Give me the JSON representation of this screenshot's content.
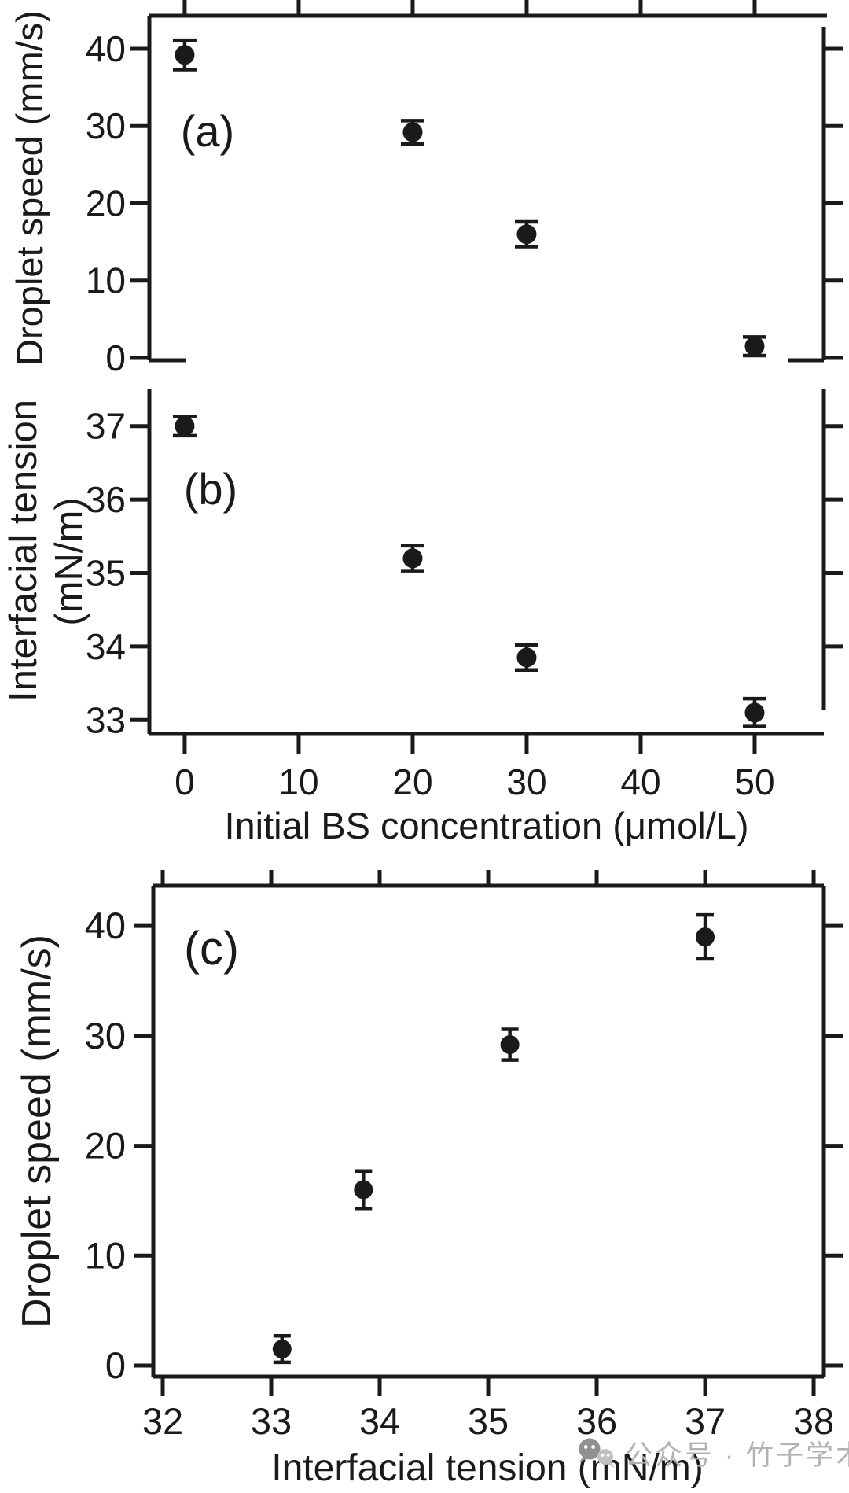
{
  "figure": {
    "background": "#ffffff",
    "ink_color": "#1a1a1a"
  },
  "chart_data": [
    {
      "id": "a",
      "type": "scatter",
      "panel_label": "(a)",
      "ylabel": "Droplet speed (mm/s)",
      "x": [
        0,
        20,
        30,
        50
      ],
      "y": [
        39.2,
        29.2,
        16.0,
        1.5
      ],
      "yerr": [
        1.9,
        1.5,
        1.6,
        1.2
      ],
      "xticks": [
        0,
        10,
        20,
        30,
        40,
        50
      ],
      "yticks": [
        0,
        10,
        20,
        30,
        40
      ],
      "xlim": [
        -3.1,
        56.07
      ],
      "ylim": [
        -0.31,
        44.27
      ],
      "marker": "filled-circle",
      "marker_color": "#1a1a1a",
      "grid": false
    },
    {
      "id": "b",
      "type": "scatter",
      "panel_label": "(b)",
      "xlabel": "Initial BS concentration (μmol/L)",
      "ylabel": "Interfacial tension (mN/m)",
      "ylabel_lines": [
        "Interfacial tension",
        "(mN/m)"
      ],
      "x": [
        0,
        20,
        30,
        50
      ],
      "y": [
        37.0,
        35.2,
        33.85,
        33.1
      ],
      "yerr": [
        0.13,
        0.17,
        0.17,
        0.19
      ],
      "xticks": [
        0,
        10,
        20,
        30,
        40,
        50
      ],
      "yticks": [
        33,
        34,
        35,
        36,
        37
      ],
      "right_yticks": [
        34,
        35,
        36,
        37
      ],
      "xlim": [
        -3.1,
        56.07
      ],
      "ylim": [
        32.81,
        37.5
      ],
      "marker": "filled-circle",
      "marker_color": "#1a1a1a",
      "grid": false
    },
    {
      "id": "c",
      "type": "scatter",
      "panel_label": "(c)",
      "xlabel": "Interfacial tension (mN/m)",
      "ylabel": "Droplet speed (mm/s)",
      "x": [
        33.1,
        33.85,
        35.2,
        37.0
      ],
      "y": [
        1.5,
        16.0,
        29.2,
        39.0
      ],
      "yerr": [
        1.2,
        1.7,
        1.4,
        2.0
      ],
      "xticks": [
        32,
        33,
        34,
        35,
        36,
        37,
        38
      ],
      "yticks": [
        0,
        10,
        20,
        30,
        40
      ],
      "xlim": [
        31.913,
        38.094
      ],
      "ylim": [
        -1.0,
        43.66
      ],
      "marker": "filled-circle",
      "marker_color": "#1a1a1a",
      "grid": false
    }
  ],
  "watermark": {
    "icon": "wechat-icon",
    "text": "公众号 · 竹子学术",
    "text_color": "#b2b2b2",
    "icon_color": "#909090"
  }
}
